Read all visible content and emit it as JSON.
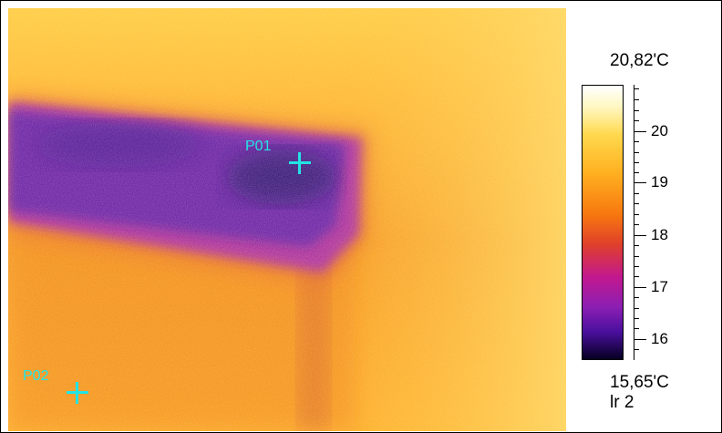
{
  "image": {
    "markers": [
      {
        "label": "P01"
      },
      {
        "label": "P02"
      }
    ]
  },
  "scale": {
    "max_label": "20,82'C",
    "min_label": "15,65'C",
    "sub_label": "lr 2",
    "ticks": [
      "20",
      "19",
      "18",
      "17",
      "16"
    ]
  },
  "colors": {
    "marker": "#22e4e4",
    "hot": "#ffd84d",
    "cold": "#2a0a6e"
  }
}
